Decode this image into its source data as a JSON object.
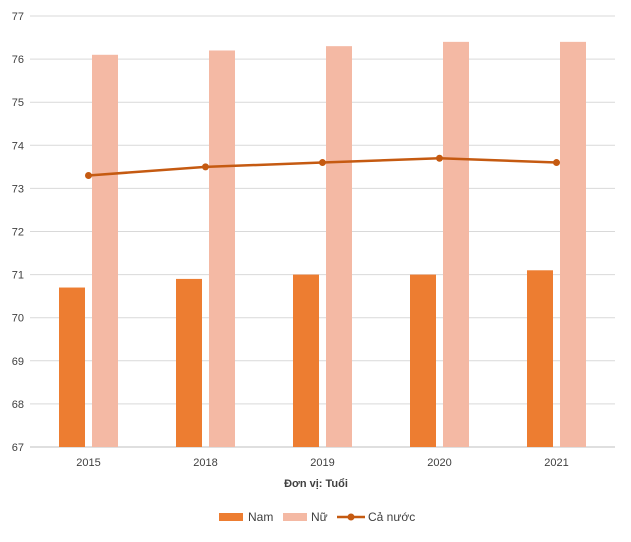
{
  "chart_data": {
    "type": "bar",
    "categories": [
      "2015",
      "2018",
      "2019",
      "2020",
      "2021"
    ],
    "series": [
      {
        "name": "Nam",
        "kind": "bar",
        "color": "#ED7D31",
        "values": [
          70.7,
          70.9,
          71.0,
          71.0,
          71.1
        ]
      },
      {
        "name": "Nữ",
        "kind": "bar",
        "color": "#F4B9A4",
        "values": [
          76.1,
          76.2,
          76.3,
          76.4,
          76.4
        ]
      },
      {
        "name": "Cả nước",
        "kind": "line",
        "color": "#C55A11",
        "values": [
          73.3,
          73.5,
          73.6,
          73.7,
          73.6
        ]
      }
    ],
    "title": "",
    "xlabel": "Đơn vị: Tuổi",
    "ylabel": "",
    "ylim": [
      67,
      77
    ],
    "yticks": [
      67,
      68,
      69,
      70,
      71,
      72,
      73,
      74,
      75,
      76,
      77
    ],
    "grid": true,
    "legend": "bottom"
  }
}
